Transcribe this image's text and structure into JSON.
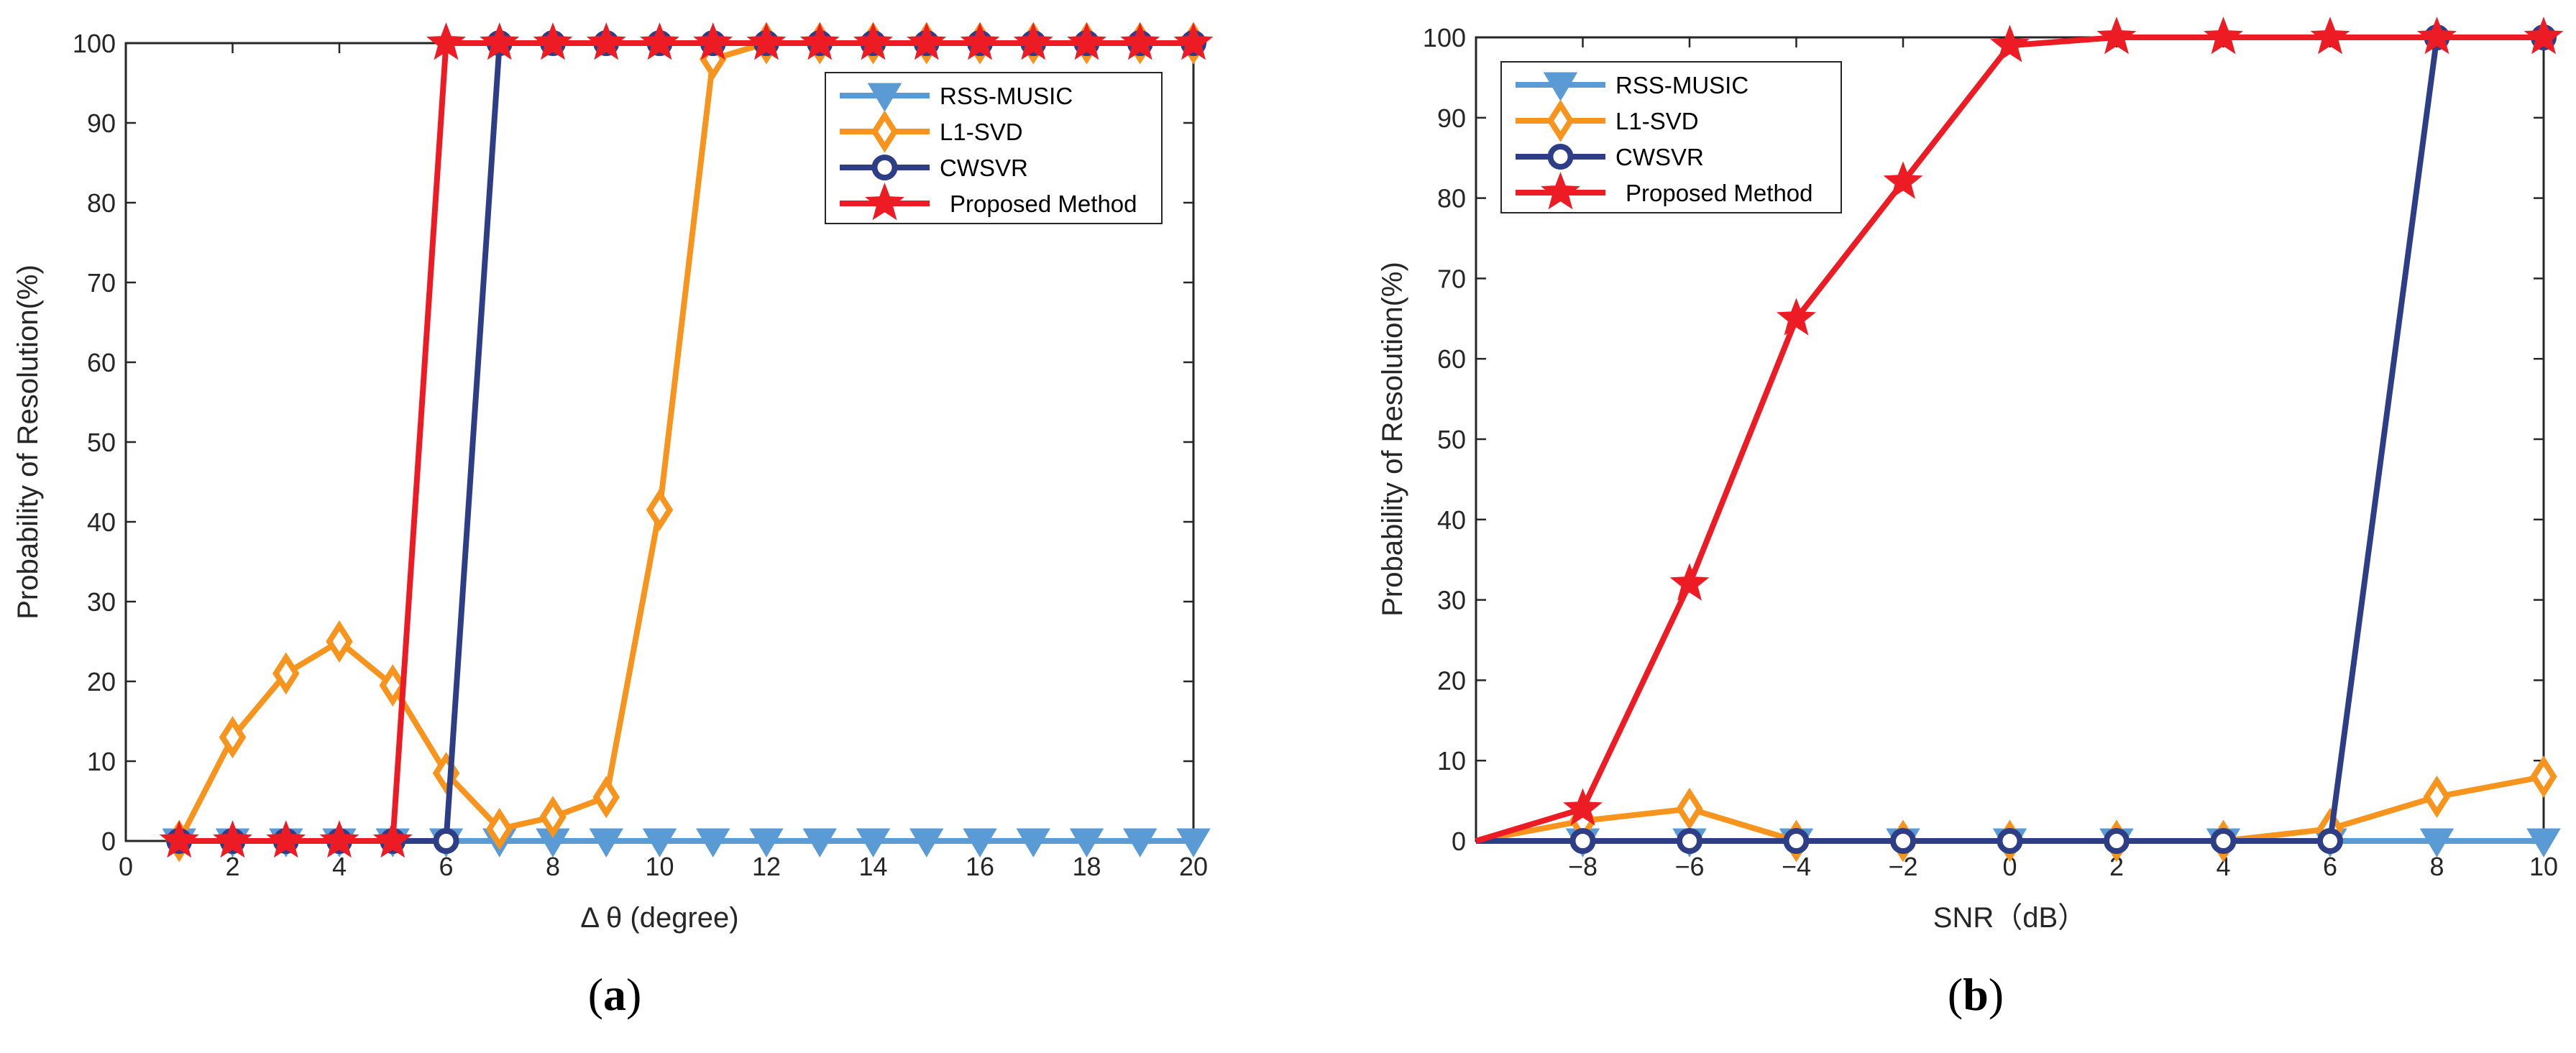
{
  "chart_data": [
    {
      "id": "a",
      "type": "line",
      "caption_letter": "a",
      "xlabel": "Δ θ (degree)",
      "ylabel": "Probability of Resolution(%)",
      "xlim": [
        0,
        20
      ],
      "ylim": [
        0,
        100
      ],
      "xticks": [
        0,
        2,
        4,
        6,
        8,
        10,
        12,
        14,
        16,
        18,
        20
      ],
      "xtick_labels": [
        "0",
        "2",
        "4",
        "6",
        "8",
        "10",
        "12",
        "14",
        "16",
        "18",
        "20"
      ],
      "yticks": [
        0,
        10,
        20,
        30,
        40,
        50,
        60,
        70,
        80,
        90,
        100
      ],
      "ytick_labels": [
        "0",
        "10",
        "20",
        "30",
        "40",
        "50",
        "60",
        "70",
        "80",
        "90",
        "100"
      ],
      "legend_position": "top-right",
      "series": [
        {
          "name": "RSS-MUSIC",
          "color": "#5B9BD5",
          "marker": "triangle-down",
          "x": [
            1,
            2,
            3,
            4,
            5,
            6,
            7,
            8,
            9,
            10,
            11,
            12,
            13,
            14,
            15,
            16,
            17,
            18,
            19,
            20
          ],
          "y": [
            0,
            0,
            0,
            0,
            0,
            0,
            0,
            0,
            0,
            0,
            0,
            0,
            0,
            0,
            0,
            0,
            0,
            0,
            0,
            0
          ]
        },
        {
          "name": "L1-SVD",
          "color": "#F7941D",
          "marker": "diamond",
          "x": [
            1,
            2,
            3,
            4,
            5,
            6,
            7,
            8,
            9,
            10,
            11,
            12,
            13,
            14,
            15,
            16,
            17,
            18,
            19,
            20
          ],
          "y": [
            0,
            13,
            21,
            25,
            19.5,
            8.5,
            1.5,
            3,
            5.5,
            41.5,
            98,
            100,
            100,
            100,
            100,
            100,
            100,
            100,
            100,
            100
          ]
        },
        {
          "name": "CWSVR",
          "color": "#2E3E86",
          "marker": "circle",
          "x": [
            1,
            2,
            3,
            4,
            5,
            6,
            7,
            8,
            9,
            10,
            11,
            12,
            13,
            14,
            15,
            16,
            17,
            18,
            19,
            20
          ],
          "y": [
            0,
            0,
            0,
            0,
            0,
            0,
            100,
            100,
            100,
            100,
            100,
            100,
            100,
            100,
            100,
            100,
            100,
            100,
            100,
            100
          ]
        },
        {
          "name": "Proposed Method",
          "color": "#ED1C24",
          "marker": "star",
          "x": [
            1,
            2,
            3,
            4,
            5,
            6,
            7,
            8,
            9,
            10,
            11,
            12,
            13,
            14,
            15,
            16,
            17,
            18,
            19,
            20
          ],
          "y": [
            0,
            0,
            0,
            0,
            0,
            100,
            100,
            100,
            100,
            100,
            100,
            100,
            100,
            100,
            100,
            100,
            100,
            100,
            100,
            100
          ]
        }
      ]
    },
    {
      "id": "b",
      "type": "line",
      "caption_letter": "b",
      "xlabel": "SNR（dB）",
      "ylabel": "Probability of Resolution(%)",
      "xlim": [
        -10,
        10
      ],
      "ylim": [
        0,
        100
      ],
      "xticks": [
        -8,
        -6,
        -4,
        -2,
        0,
        2,
        4,
        6,
        8,
        10
      ],
      "xtick_labels": [
        "−8",
        "−6",
        "−4",
        "−2",
        "0",
        "2",
        "4",
        "6",
        "8",
        "10"
      ],
      "yticks": [
        0,
        10,
        20,
        30,
        40,
        50,
        60,
        70,
        80,
        90,
        100
      ],
      "ytick_labels": [
        "0",
        "10",
        "20",
        "30",
        "40",
        "50",
        "60",
        "70",
        "80",
        "90",
        "100"
      ],
      "legend_position": "top-left",
      "series": [
        {
          "name": "RSS-MUSIC",
          "color": "#5B9BD5",
          "marker": "triangle-down",
          "x": [
            -10,
            -8,
            -6,
            -4,
            -2,
            0,
            2,
            4,
            6,
            8,
            10
          ],
          "y": [
            0,
            0,
            0,
            0,
            0,
            0,
            0,
            0,
            0,
            0,
            0
          ]
        },
        {
          "name": "L1-SVD",
          "color": "#F7941D",
          "marker": "diamond",
          "x": [
            -10,
            -8,
            -6,
            -4,
            -2,
            0,
            2,
            4,
            6,
            8,
            10
          ],
          "y": [
            0,
            2.5,
            4,
            0,
            0,
            0,
            0,
            0,
            1.5,
            5.5,
            8
          ]
        },
        {
          "name": "CWSVR",
          "color": "#2E3E86",
          "marker": "circle",
          "x": [
            -10,
            -8,
            -6,
            -4,
            -2,
            0,
            2,
            4,
            6,
            8,
            10
          ],
          "y": [
            0,
            0,
            0,
            0,
            0,
            0,
            0,
            0,
            0,
            100,
            100
          ]
        },
        {
          "name": "Proposed Method",
          "color": "#ED1C24",
          "marker": "star",
          "x": [
            -10,
            -8,
            -6,
            -4,
            -2,
            0,
            2,
            4,
            6,
            8,
            10
          ],
          "y": [
            0,
            4,
            32,
            65,
            82,
            99,
            100,
            100,
            100,
            100,
            100
          ]
        }
      ]
    }
  ]
}
